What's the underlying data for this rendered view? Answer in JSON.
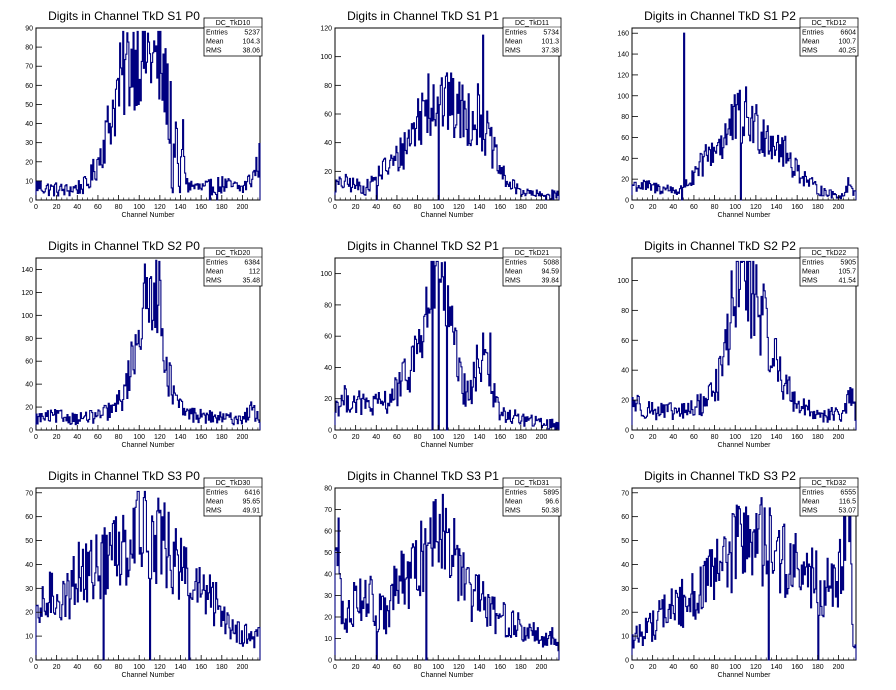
{
  "window": {
    "background": "#ffffff"
  },
  "colors": {
    "histogram": "#000080",
    "axis": "#000000",
    "frame": "#000000"
  },
  "chart_data": [
    {
      "type": "histogram",
      "title": "Digits in Channel TkD S1 P0",
      "xlabel": "Channel Number",
      "xlim": [
        0,
        217
      ],
      "ylim": [
        0,
        90
      ],
      "xticks": [
        "0",
        "20",
        "40",
        "60",
        "80",
        "100",
        "120",
        "140",
        "160",
        "180",
        "200"
      ],
      "yticks": [
        "0",
        "10",
        "20",
        "30",
        "40",
        "50",
        "60",
        "70",
        "80",
        "90"
      ],
      "stats": {
        "name": "DC_TkD10",
        "Entries": "5237",
        "Mean": "104.3",
        "RMS": "38.06"
      },
      "profile": [
        [
          0,
          8
        ],
        [
          10,
          6
        ],
        [
          30,
          5
        ],
        [
          50,
          8
        ],
        [
          60,
          20
        ],
        [
          70,
          38
        ],
        [
          80,
          58
        ],
        [
          90,
          72
        ],
        [
          100,
          78
        ],
        [
          110,
          76
        ],
        [
          120,
          68
        ],
        [
          128,
          55
        ],
        [
          132,
          0
        ],
        [
          135,
          42
        ],
        [
          139,
          0
        ],
        [
          142,
          35
        ],
        [
          146,
          8
        ],
        [
          160,
          6
        ],
        [
          180,
          8
        ],
        [
          200,
          6
        ],
        [
          210,
          12
        ],
        [
          217,
          22
        ]
      ],
      "spikes": [
        [
          168,
          0
        ],
        [
          175,
          0
        ],
        [
          130,
          62
        ]
      ]
    },
    {
      "type": "histogram",
      "title": "Digits in Channel TkD S1 P1",
      "xlabel": "Channel Number",
      "xlim": [
        0,
        217
      ],
      "ylim": [
        0,
        120
      ],
      "xticks": [
        "0",
        "20",
        "40",
        "60",
        "80",
        "100",
        "120",
        "140",
        "160",
        "180",
        "200"
      ],
      "yticks": [
        "0",
        "20",
        "40",
        "60",
        "80",
        "100",
        "120"
      ],
      "stats": {
        "name": "DC_TkD11",
        "Entries": "5734",
        "Mean": "101.3",
        "RMS": "37.38"
      },
      "profile": [
        [
          0,
          10
        ],
        [
          10,
          12
        ],
        [
          30,
          8
        ],
        [
          45,
          20
        ],
        [
          60,
          28
        ],
        [
          70,
          40
        ],
        [
          80,
          55
        ],
        [
          90,
          68
        ],
        [
          100,
          72
        ],
        [
          110,
          65
        ],
        [
          120,
          62
        ],
        [
          130,
          58
        ],
        [
          140,
          60
        ],
        [
          150,
          40
        ],
        [
          160,
          20
        ],
        [
          170,
          10
        ],
        [
          185,
          5
        ],
        [
          200,
          3
        ],
        [
          217,
          4
        ]
      ],
      "spikes": [
        [
          143,
          115
        ],
        [
          100,
          0
        ],
        [
          90,
          88
        ],
        [
          110,
          82
        ],
        [
          40,
          0
        ]
      ]
    },
    {
      "type": "histogram",
      "title": "Digits in Channel TkD S1 P2",
      "xlabel": "Channel Number",
      "xlim": [
        0,
        217
      ],
      "ylim": [
        0,
        165
      ],
      "xticks": [
        "0",
        "20",
        "40",
        "60",
        "80",
        "100",
        "120",
        "140",
        "160",
        "180",
        "200"
      ],
      "yticks": [
        "0",
        "20",
        "40",
        "60",
        "80",
        "100",
        "120",
        "140",
        "160"
      ],
      "stats": {
        "name": "DC_TkD12",
        "Entries": "6604",
        "Mean": "100.7",
        "RMS": "40.25"
      },
      "profile": [
        [
          0,
          15
        ],
        [
          20,
          12
        ],
        [
          40,
          10
        ],
        [
          46,
          8
        ],
        [
          50,
          15
        ],
        [
          60,
          20
        ],
        [
          70,
          38
        ],
        [
          80,
          50
        ],
        [
          90,
          60
        ],
        [
          100,
          75
        ],
        [
          110,
          80
        ],
        [
          120,
          70
        ],
        [
          130,
          65
        ],
        [
          140,
          55
        ],
        [
          150,
          42
        ],
        [
          160,
          30
        ],
        [
          170,
          18
        ],
        [
          180,
          10
        ],
        [
          195,
          5
        ],
        [
          205,
          4
        ],
        [
          210,
          18
        ],
        [
          217,
          5
        ]
      ],
      "spikes": [
        [
          50,
          160
        ],
        [
          48,
          0
        ],
        [
          105,
          0
        ]
      ]
    },
    {
      "type": "histogram",
      "title": "Digits in Channel TkD S2 P0",
      "xlabel": "Channel Number",
      "xlim": [
        0,
        217
      ],
      "ylim": [
        0,
        150
      ],
      "xticks": [
        "0",
        "20",
        "40",
        "60",
        "80",
        "100",
        "120",
        "140",
        "160",
        "180",
        "200"
      ],
      "yticks": [
        "0",
        "20",
        "40",
        "60",
        "80",
        "100",
        "120",
        "140"
      ],
      "stats": {
        "name": "DC_TkD20",
        "Entries": "6384",
        "Mean": "112",
        "RMS": "35.48"
      },
      "profile": [
        [
          0,
          10
        ],
        [
          20,
          12
        ],
        [
          40,
          10
        ],
        [
          60,
          12
        ],
        [
          75,
          18
        ],
        [
          85,
          30
        ],
        [
          92,
          55
        ],
        [
          98,
          85
        ],
        [
          104,
          105
        ],
        [
          110,
          110
        ],
        [
          114,
          140
        ],
        [
          118,
          120
        ],
        [
          122,
          90
        ],
        [
          128,
          50
        ],
        [
          135,
          25
        ],
        [
          145,
          15
        ],
        [
          160,
          12
        ],
        [
          180,
          10
        ],
        [
          200,
          10
        ],
        [
          210,
          18
        ],
        [
          217,
          8
        ]
      ],
      "spikes": [
        [
          116,
          148
        ]
      ]
    },
    {
      "type": "histogram",
      "title": "Digits in Channel TkD S2 P1",
      "xlabel": "Channel Number",
      "xlim": [
        0,
        217
      ],
      "ylim": [
        0,
        110
      ],
      "xticks": [
        "0",
        "20",
        "40",
        "60",
        "80",
        "100",
        "120",
        "140",
        "160",
        "180",
        "200"
      ],
      "yticks": [
        "0",
        "20",
        "40",
        "60",
        "80",
        "100"
      ],
      "stats": {
        "name": "DC_TkD21",
        "Entries": "5088",
        "Mean": "94.59",
        "RMS": "39.84"
      },
      "profile": [
        [
          0,
          15
        ],
        [
          10,
          20
        ],
        [
          20,
          18
        ],
        [
          35,
          15
        ],
        [
          50,
          18
        ],
        [
          60,
          25
        ],
        [
          70,
          35
        ],
        [
          78,
          50
        ],
        [
          85,
          62
        ],
        [
          90,
          80
        ],
        [
          95,
          90
        ],
        [
          100,
          100
        ],
        [
          105,
          90
        ],
        [
          110,
          70
        ],
        [
          115,
          55
        ],
        [
          122,
          30
        ],
        [
          130,
          20
        ],
        [
          140,
          45
        ],
        [
          146,
          58
        ],
        [
          150,
          30
        ],
        [
          160,
          10
        ],
        [
          175,
          8
        ],
        [
          195,
          5
        ],
        [
          217,
          3
        ]
      ],
      "spikes": [
        [
          100,
          0
        ],
        [
          103,
          107
        ],
        [
          97,
          105
        ],
        [
          108,
          0
        ],
        [
          94,
          0
        ],
        [
          150,
          62
        ]
      ]
    },
    {
      "type": "histogram",
      "title": "Digits in Channel TkD S2 P2",
      "xlabel": "Channel Number",
      "xlim": [
        0,
        217
      ],
      "ylim": [
        0,
        115
      ],
      "xticks": [
        "0",
        "20",
        "40",
        "60",
        "80",
        "100",
        "120",
        "140",
        "160",
        "180",
        "200"
      ],
      "yticks": [
        "0",
        "20",
        "40",
        "60",
        "80",
        "100"
      ],
      "stats": {
        "name": "DC_TkD22",
        "Entries": "5905",
        "Mean": "105.7",
        "RMS": "41.54"
      },
      "profile": [
        [
          0,
          20
        ],
        [
          10,
          15
        ],
        [
          30,
          12
        ],
        [
          50,
          12
        ],
        [
          70,
          18
        ],
        [
          85,
          35
        ],
        [
          92,
          60
        ],
        [
          98,
          85
        ],
        [
          104,
          100
        ],
        [
          110,
          105
        ],
        [
          116,
          95
        ],
        [
          122,
          85
        ],
        [
          130,
          65
        ],
        [
          140,
          45
        ],
        [
          150,
          28
        ],
        [
          160,
          18
        ],
        [
          175,
          12
        ],
        [
          190,
          10
        ],
        [
          205,
          10
        ],
        [
          212,
          25
        ],
        [
          217,
          8
        ]
      ],
      "spikes": [
        [
          106,
          112
        ]
      ]
    },
    {
      "type": "histogram",
      "title": "Digits in Channel TkD S3 P0",
      "xlabel": "Channel Number",
      "xlim": [
        0,
        217
      ],
      "ylim": [
        0,
        72
      ],
      "xticks": [
        "0",
        "20",
        "40",
        "60",
        "80",
        "100",
        "120",
        "140",
        "160",
        "180",
        "200"
      ],
      "yticks": [
        "0",
        "10",
        "20",
        "30",
        "40",
        "50",
        "60",
        "70"
      ],
      "stats": {
        "name": "DC_TkD30",
        "Entries": "6416",
        "Mean": "95.65",
        "RMS": "49.91"
      },
      "profile": [
        [
          0,
          15
        ],
        [
          10,
          25
        ],
        [
          20,
          28
        ],
        [
          30,
          25
        ],
        [
          40,
          38
        ],
        [
          50,
          35
        ],
        [
          60,
          40
        ],
        [
          70,
          42
        ],
        [
          80,
          48
        ],
        [
          90,
          52
        ],
        [
          100,
          60
        ],
        [
          105,
          62
        ],
        [
          110,
          55
        ],
        [
          120,
          50
        ],
        [
          130,
          45
        ],
        [
          140,
          38
        ],
        [
          150,
          32
        ],
        [
          160,
          28
        ],
        [
          170,
          25
        ],
        [
          180,
          20
        ],
        [
          190,
          14
        ],
        [
          200,
          12
        ],
        [
          210,
          8
        ],
        [
          217,
          12
        ]
      ],
      "spikes": [
        [
          104,
          68
        ],
        [
          65,
          0
        ],
        [
          110,
          0
        ],
        [
          148,
          0
        ],
        [
          72,
          48
        ]
      ]
    },
    {
      "type": "histogram",
      "title": "Digits in Channel TkD S3 P1",
      "xlabel": "Channel Number",
      "xlim": [
        0,
        217
      ],
      "ylim": [
        0,
        80
      ],
      "xticks": [
        "0",
        "20",
        "40",
        "60",
        "80",
        "100",
        "120",
        "140",
        "160",
        "180",
        "200"
      ],
      "yticks": [
        "0",
        "10",
        "20",
        "30",
        "40",
        "50",
        "60",
        "70",
        "80"
      ],
      "stats": {
        "name": "DC_TkD31",
        "Entries": "5895",
        "Mean": "96.6",
        "RMS": "50.38"
      },
      "profile": [
        [
          0,
          60
        ],
        [
          5,
          30
        ],
        [
          10,
          15
        ],
        [
          20,
          30
        ],
        [
          30,
          32
        ],
        [
          40,
          22
        ],
        [
          50,
          20
        ],
        [
          60,
          35
        ],
        [
          70,
          38
        ],
        [
          80,
          42
        ],
        [
          90,
          55
        ],
        [
          100,
          62
        ],
        [
          105,
          70
        ],
        [
          110,
          55
        ],
        [
          120,
          42
        ],
        [
          130,
          30
        ],
        [
          140,
          28
        ],
        [
          150,
          22
        ],
        [
          160,
          20
        ],
        [
          170,
          18
        ],
        [
          180,
          14
        ],
        [
          195,
          12
        ],
        [
          210,
          10
        ],
        [
          217,
          8
        ]
      ],
      "spikes": [
        [
          3,
          66
        ],
        [
          104,
          77
        ],
        [
          40,
          0
        ],
        [
          88,
          0
        ]
      ]
    },
    {
      "type": "histogram",
      "title": "Digits in Channel TkD S3 P2",
      "xlabel": "Channel Number",
      "xlim": [
        0,
        217
      ],
      "ylim": [
        0,
        72
      ],
      "xticks": [
        "0",
        "20",
        "40",
        "60",
        "80",
        "100",
        "120",
        "140",
        "160",
        "180",
        "200"
      ],
      "yticks": [
        "0",
        "10",
        "20",
        "30",
        "40",
        "50",
        "60",
        "70"
      ],
      "stats": {
        "name": "DC_TkD32",
        "Entries": "6555",
        "Mean": "116.5",
        "RMS": "53.07"
      },
      "profile": [
        [
          0,
          8
        ],
        [
          10,
          12
        ],
        [
          20,
          15
        ],
        [
          30,
          20
        ],
        [
          40,
          22
        ],
        [
          50,
          24
        ],
        [
          60,
          28
        ],
        [
          70,
          30
        ],
        [
          80,
          35
        ],
        [
          90,
          40
        ],
        [
          100,
          48
        ],
        [
          110,
          52
        ],
        [
          120,
          50
        ],
        [
          130,
          48
        ],
        [
          140,
          45
        ],
        [
          150,
          40
        ],
        [
          160,
          38
        ],
        [
          170,
          35
        ],
        [
          180,
          32
        ],
        [
          190,
          30
        ],
        [
          200,
          32
        ],
        [
          205,
          45
        ],
        [
          210,
          65
        ],
        [
          214,
          10
        ],
        [
          217,
          5
        ]
      ],
      "spikes": [
        [
          132,
          0
        ],
        [
          180,
          0
        ],
        [
          110,
          64
        ],
        [
          211,
          70
        ]
      ]
    }
  ]
}
